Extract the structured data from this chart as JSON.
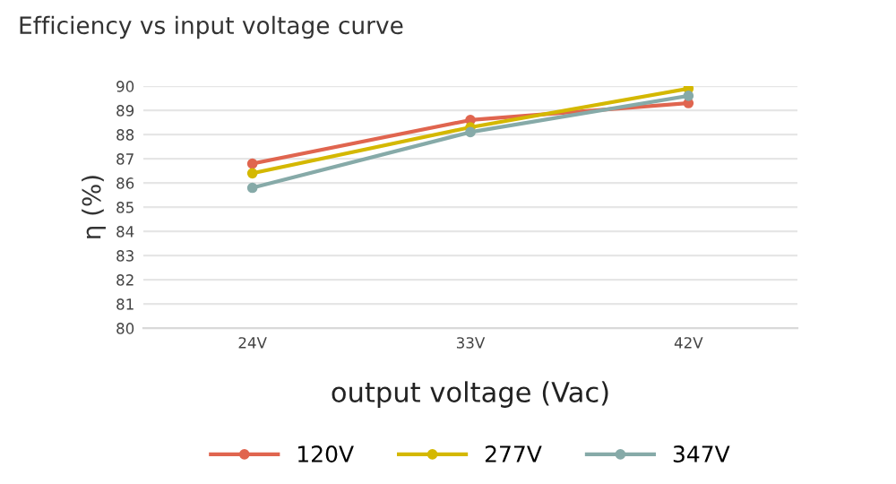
{
  "chart_data": {
    "type": "line",
    "title": "Efficiency vs input voltage curve",
    "xlabel": "output voltage (Vac)",
    "ylabel": "η (%)",
    "categories": [
      "24V",
      "33V",
      "42V"
    ],
    "series": [
      {
        "name": "120V",
        "color": "#e0654f",
        "values": [
          86.8,
          88.6,
          89.3
        ]
      },
      {
        "name": "277V",
        "color": "#d4b800",
        "values": [
          86.4,
          88.3,
          89.9
        ]
      },
      {
        "name": "347V",
        "color": "#86aaa8",
        "values": [
          85.8,
          88.1,
          89.6
        ]
      }
    ],
    "ylim": [
      80,
      90
    ],
    "yticks": [
      80,
      81,
      82,
      83,
      84,
      85,
      86,
      87,
      88,
      89,
      90
    ],
    "grid": "y",
    "legend": "bottom",
    "marker": "circle",
    "line_style": "solid"
  }
}
